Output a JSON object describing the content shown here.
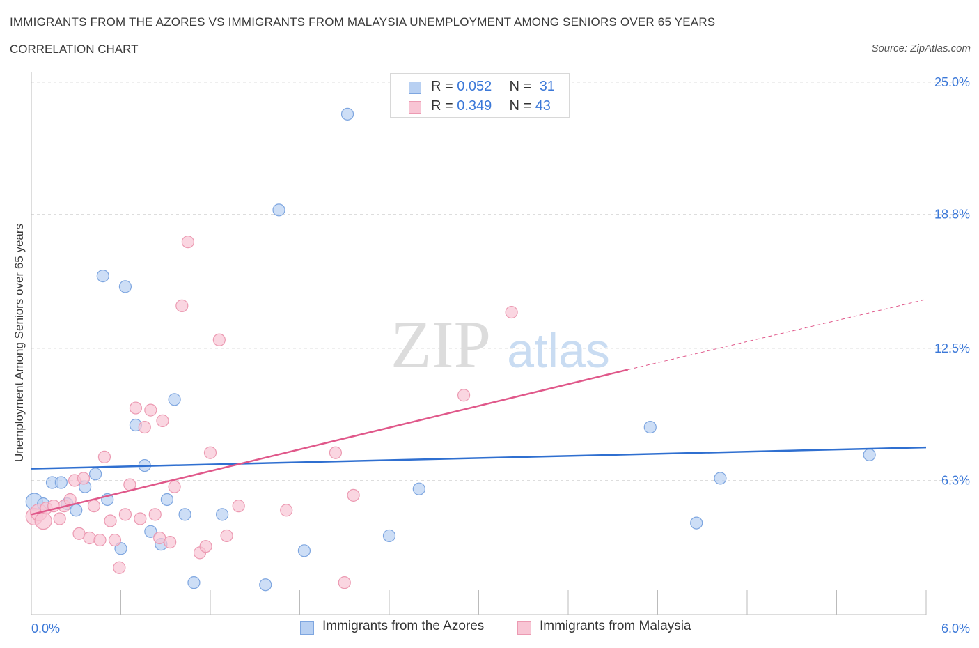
{
  "header": {
    "title": "IMMIGRANTS FROM THE AZORES VS IMMIGRANTS FROM MALAYSIA UNEMPLOYMENT AMONG SENIORS OVER 65 YEARS",
    "subtitle": "CORRELATION CHART",
    "source": "Source: ZipAtlas.com"
  },
  "watermark": {
    "zip": "ZIP",
    "atlas": "atlas"
  },
  "stats": {
    "azores": {
      "r_label": "R = ",
      "r_value": "0.052",
      "n_label": "N = ",
      "n_value": "31"
    },
    "malaysia": {
      "r_label": "R = ",
      "r_value": "0.349",
      "n_label": "N = ",
      "n_value": "43"
    }
  },
  "legend": {
    "azores": "Immigrants from the Azores",
    "malaysia": "Immigrants from Malaysia"
  },
  "colors": {
    "azores_fill": "#b8d0f2",
    "azores_stroke": "#7ea6e0",
    "azores_line": "#2f6fd0",
    "malaysia_fill": "#f8c5d4",
    "malaysia_stroke": "#ec9ab2",
    "malaysia_line": "#e0588a",
    "tick_label": "#3b78d8",
    "grid": "#dddddd"
  },
  "chart_data": {
    "type": "scatter",
    "title": "IMMIGRANTS FROM THE AZORES VS IMMIGRANTS FROM MALAYSIA UNEMPLOYMENT AMONG SENIORS OVER 65 YEARS",
    "xlabel": "",
    "ylabel": "Unemployment Among Seniors over 65 years",
    "xlim": [
      0,
      6
    ],
    "ylim": [
      0,
      25
    ],
    "x_tick_labels": [
      "0.0%",
      "6.0%"
    ],
    "y_ticks": [
      6.3,
      12.5,
      18.8,
      25.0
    ],
    "y_tick_labels": [
      "6.3%",
      "12.5%",
      "18.8%",
      "25.0%"
    ],
    "grid": true,
    "series": [
      {
        "name": "Immigrants from the Azores",
        "points": [
          [
            0.02,
            5.3
          ],
          [
            0.08,
            5.2
          ],
          [
            0.14,
            6.2
          ],
          [
            0.2,
            6.2
          ],
          [
            0.24,
            5.2
          ],
          [
            0.3,
            4.9
          ],
          [
            0.36,
            6.0
          ],
          [
            0.43,
            6.6
          ],
          [
            0.48,
            15.9
          ],
          [
            0.51,
            5.4
          ],
          [
            0.6,
            3.1
          ],
          [
            0.63,
            15.4
          ],
          [
            0.7,
            8.9
          ],
          [
            0.76,
            7.0
          ],
          [
            0.8,
            3.9
          ],
          [
            0.87,
            3.3
          ],
          [
            0.91,
            5.4
          ],
          [
            0.96,
            10.1
          ],
          [
            1.03,
            4.7
          ],
          [
            1.09,
            1.5
          ],
          [
            1.28,
            4.7
          ],
          [
            1.57,
            1.4
          ],
          [
            1.66,
            19.0
          ],
          [
            1.83,
            3.0
          ],
          [
            2.12,
            23.5
          ],
          [
            2.4,
            3.7
          ],
          [
            2.6,
            5.9
          ],
          [
            4.15,
            8.8
          ],
          [
            4.46,
            4.3
          ],
          [
            4.62,
            6.4
          ],
          [
            5.62,
            7.5
          ]
        ],
        "trend": {
          "x": [
            0,
            6
          ],
          "y": [
            6.85,
            7.85
          ]
        }
      },
      {
        "name": "Immigrants from Malaysia",
        "points": [
          [
            0.02,
            4.6
          ],
          [
            0.05,
            4.8
          ],
          [
            0.08,
            4.4
          ],
          [
            0.1,
            5.0
          ],
          [
            0.15,
            5.1
          ],
          [
            0.19,
            4.5
          ],
          [
            0.22,
            5.1
          ],
          [
            0.26,
            5.4
          ],
          [
            0.29,
            6.3
          ],
          [
            0.32,
            3.8
          ],
          [
            0.35,
            6.4
          ],
          [
            0.39,
            3.6
          ],
          [
            0.42,
            5.1
          ],
          [
            0.46,
            3.5
          ],
          [
            0.49,
            7.4
          ],
          [
            0.53,
            4.4
          ],
          [
            0.56,
            3.5
          ],
          [
            0.59,
            2.2
          ],
          [
            0.63,
            4.7
          ],
          [
            0.66,
            6.1
          ],
          [
            0.7,
            9.7
          ],
          [
            0.73,
            4.5
          ],
          [
            0.76,
            8.8
          ],
          [
            0.8,
            9.6
          ],
          [
            0.83,
            4.7
          ],
          [
            0.86,
            3.6
          ],
          [
            0.88,
            9.1
          ],
          [
            0.93,
            3.4
          ],
          [
            0.96,
            6.0
          ],
          [
            1.01,
            14.5
          ],
          [
            1.05,
            17.5
          ],
          [
            1.13,
            2.9
          ],
          [
            1.17,
            3.2
          ],
          [
            1.2,
            7.6
          ],
          [
            1.26,
            12.9
          ],
          [
            1.31,
            3.7
          ],
          [
            1.39,
            5.1
          ],
          [
            1.71,
            4.9
          ],
          [
            2.04,
            7.6
          ],
          [
            2.1,
            1.5
          ],
          [
            2.16,
            5.6
          ],
          [
            2.9,
            10.3
          ],
          [
            3.22,
            14.2
          ]
        ],
        "trend": {
          "x": [
            0,
            4.0
          ],
          "y": [
            4.7,
            11.5
          ]
        },
        "trend_dashed": {
          "x": [
            4.0,
            6.0
          ],
          "y": [
            11.5,
            14.8
          ]
        }
      }
    ]
  }
}
